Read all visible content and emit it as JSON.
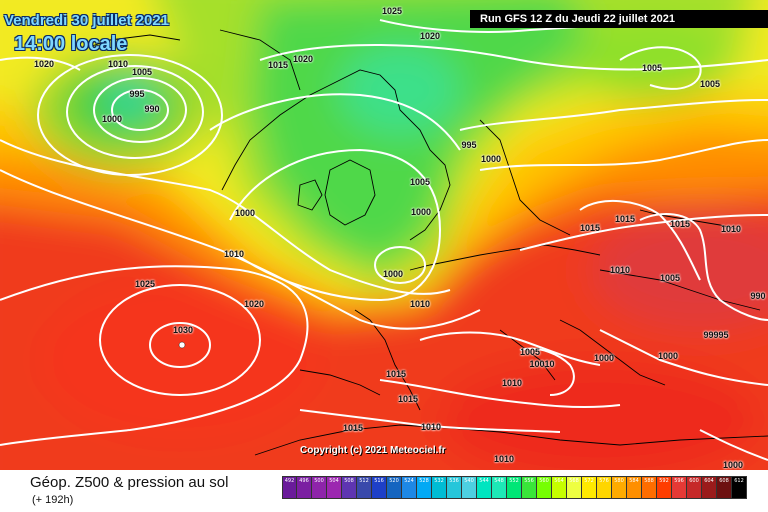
{
  "header": {
    "date": "Vendredi 30 juillet 2021",
    "time": "14:00 locale",
    "run": "Run GFS 12 Z du Jeudi 22 juillet 2021"
  },
  "map": {
    "pressure_labels": [
      "1025",
      "1020",
      "1020",
      "1010",
      "1005",
      "995",
      "990",
      "1000",
      "1015",
      "1020",
      "1005",
      "1005",
      "995",
      "1000",
      "1005",
      "1000",
      "1015",
      "1015",
      "1015",
      "1010",
      "1010",
      "1005",
      "1000",
      "1025",
      "1030",
      "1020",
      "1010",
      "1000",
      "1005",
      "1010",
      "10010",
      "1010",
      "1000",
      "99995",
      "1000",
      "990",
      "1015",
      "1015",
      "1010",
      "1015",
      "1010",
      "1000"
    ],
    "copyright": "Copyright (c) 2021 Meteociel.fr"
  },
  "footer": {
    "title": "Géop. Z500 & pression au sol",
    "subtitle": "(+ 192h)",
    "legend_values": [
      "492",
      "496",
      "500",
      "504",
      "508",
      "512",
      "516",
      "520",
      "524",
      "528",
      "532",
      "536",
      "540",
      "544",
      "548",
      "552",
      "556",
      "560",
      "564",
      "568",
      "572",
      "576",
      "580",
      "584",
      "588",
      "592",
      "596",
      "600",
      "604",
      "608",
      "612"
    ],
    "legend_colors": [
      "#6a1b9a",
      "#7b1fa2",
      "#8e24aa",
      "#9c27b0",
      "#5e35b1",
      "#3949ab",
      "#1e40c8",
      "#1565c0",
      "#1e88e5",
      "#03a9f4",
      "#00bcd4",
      "#26c6da",
      "#4dd0e1",
      "#00e5c0",
      "#1de9b6",
      "#00e676",
      "#39e639",
      "#76ff03",
      "#c6ff00",
      "#eeff41",
      "#ffea00",
      "#ffd600",
      "#ffab00",
      "#ff8f00",
      "#ff6d00",
      "#ff3d00",
      "#e53935",
      "#c62828",
      "#9a1b1b",
      "#6d1010",
      "#000000"
    ]
  }
}
